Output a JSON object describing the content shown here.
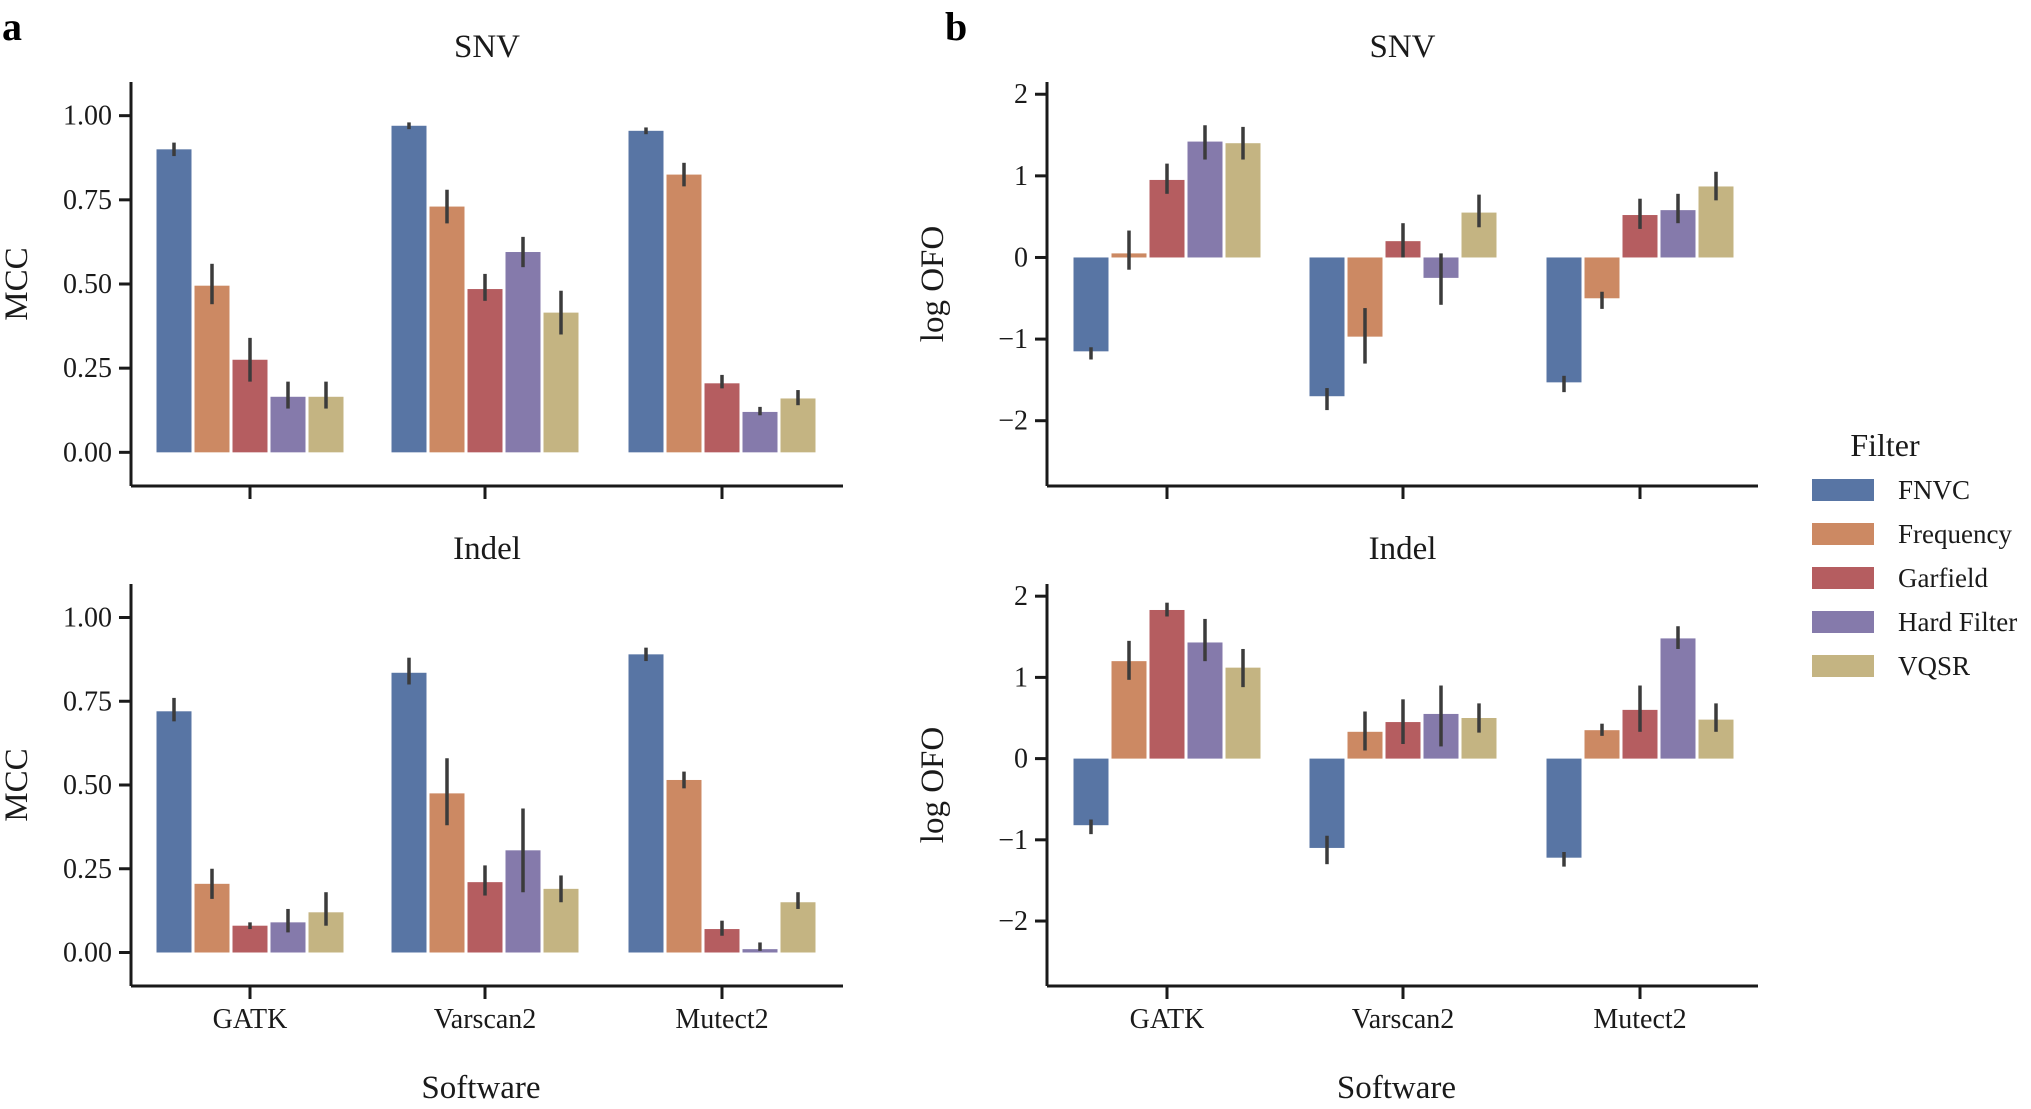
{
  "panels": {
    "a": "a",
    "b": "b"
  },
  "legend": {
    "title": "Filter",
    "items": [
      {
        "name": "FNVC",
        "color": "#5875a4"
      },
      {
        "name": "Frequency",
        "color": "#cc8963"
      },
      {
        "name": "Garfield",
        "color": "#b55d60"
      },
      {
        "name": "Hard Filter",
        "color": "#857aab"
      },
      {
        "name": "VQSR",
        "color": "#c4b482"
      }
    ]
  },
  "chart_data": [
    {
      "id": "a_snv",
      "panel": "a",
      "type": "bar",
      "title": "SNV",
      "xlabel": "",
      "ylabel": "MCC",
      "ylim": [
        -0.1,
        1.1
      ],
      "yticks": [
        "0.00",
        "0.25",
        "0.50",
        "0.75",
        "1.00"
      ],
      "categories": [
        "GATK",
        "Varscan2",
        "Mutect2"
      ],
      "show_xticklabels": false,
      "series": [
        {
          "name": "FNVC",
          "values": [
            0.9,
            0.97,
            0.955
          ],
          "err": [
            [
              0.88,
              0.92
            ],
            [
              0.96,
              0.98
            ],
            [
              0.945,
              0.965
            ]
          ]
        },
        {
          "name": "Frequency",
          "values": [
            0.495,
            0.73,
            0.825
          ],
          "err": [
            [
              0.44,
              0.56
            ],
            [
              0.68,
              0.78
            ],
            [
              0.79,
              0.86
            ]
          ]
        },
        {
          "name": "Garfield",
          "values": [
            0.275,
            0.485,
            0.205
          ],
          "err": [
            [
              0.21,
              0.34
            ],
            [
              0.45,
              0.53
            ],
            [
              0.19,
              0.23
            ]
          ]
        },
        {
          "name": "Hard Filter",
          "values": [
            0.165,
            0.595,
            0.12
          ],
          "err": [
            [
              0.13,
              0.21
            ],
            [
              0.55,
              0.64
            ],
            [
              0.11,
              0.135
            ]
          ]
        },
        {
          "name": "VQSR",
          "values": [
            0.165,
            0.415,
            0.16
          ],
          "err": [
            [
              0.13,
              0.21
            ],
            [
              0.35,
              0.48
            ],
            [
              0.14,
              0.185
            ]
          ]
        }
      ]
    },
    {
      "id": "a_indel",
      "panel": "a",
      "type": "bar",
      "title": "Indel",
      "xlabel": "Software",
      "ylabel": "MCC",
      "ylim": [
        -0.1,
        1.1
      ],
      "yticks": [
        "0.00",
        "0.25",
        "0.50",
        "0.75",
        "1.00"
      ],
      "categories": [
        "GATK",
        "Varscan2",
        "Mutect2"
      ],
      "show_xticklabels": true,
      "series": [
        {
          "name": "FNVC",
          "values": [
            0.72,
            0.835,
            0.89
          ],
          "err": [
            [
              0.69,
              0.76
            ],
            [
              0.8,
              0.88
            ],
            [
              0.87,
              0.91
            ]
          ]
        },
        {
          "name": "Frequency",
          "values": [
            0.205,
            0.475,
            0.515
          ],
          "err": [
            [
              0.16,
              0.25
            ],
            [
              0.38,
              0.58
            ],
            [
              0.49,
              0.54
            ]
          ]
        },
        {
          "name": "Garfield",
          "values": [
            0.08,
            0.21,
            0.07
          ],
          "err": [
            [
              0.07,
              0.09
            ],
            [
              0.17,
              0.26
            ],
            [
              0.05,
              0.095
            ]
          ]
        },
        {
          "name": "Hard Filter",
          "values": [
            0.09,
            0.305,
            0.01
          ],
          "err": [
            [
              0.06,
              0.13
            ],
            [
              0.18,
              0.43
            ],
            [
              0.005,
              0.03
            ]
          ]
        },
        {
          "name": "VQSR",
          "values": [
            0.12,
            0.19,
            0.15
          ],
          "err": [
            [
              0.08,
              0.18
            ],
            [
              0.15,
              0.23
            ],
            [
              0.13,
              0.18
            ]
          ]
        }
      ]
    },
    {
      "id": "b_snv",
      "panel": "b",
      "type": "bar",
      "title": "SNV",
      "xlabel": "",
      "ylabel": "log OFO",
      "ylim": [
        -2.8,
        2.15
      ],
      "yticks": [
        "−2",
        "−1",
        "0",
        "1",
        "2"
      ],
      "categories": [
        "GATK",
        "Varscan2",
        "Mutect2"
      ],
      "show_xticklabels": false,
      "series": [
        {
          "name": "FNVC",
          "values": [
            -1.15,
            -1.7,
            -1.53
          ],
          "err": [
            [
              -1.25,
              -1.1
            ],
            [
              -1.87,
              -1.6
            ],
            [
              -1.65,
              -1.45
            ]
          ]
        },
        {
          "name": "Frequency",
          "values": [
            0.05,
            -0.97,
            -0.5
          ],
          "err": [
            [
              -0.15,
              0.33
            ],
            [
              -1.3,
              -0.62
            ],
            [
              -0.63,
              -0.42
            ]
          ]
        },
        {
          "name": "Garfield",
          "values": [
            0.95,
            0.2,
            0.52
          ],
          "err": [
            [
              0.78,
              1.15
            ],
            [
              0.0,
              0.42
            ],
            [
              0.35,
              0.72
            ]
          ]
        },
        {
          "name": "Hard Filter",
          "values": [
            1.42,
            -0.25,
            0.58
          ],
          "err": [
            [
              1.2,
              1.62
            ],
            [
              -0.58,
              0.05
            ],
            [
              0.42,
              0.78
            ]
          ]
        },
        {
          "name": "VQSR",
          "values": [
            1.4,
            0.55,
            0.87
          ],
          "err": [
            [
              1.2,
              1.6
            ],
            [
              0.37,
              0.77
            ],
            [
              0.7,
              1.05
            ]
          ]
        }
      ]
    },
    {
      "id": "b_indel",
      "panel": "b",
      "type": "bar",
      "title": "Indel",
      "xlabel": "Software",
      "ylabel": "log OFO",
      "ylim": [
        -2.8,
        2.15
      ],
      "yticks": [
        "−2",
        "−1",
        "0",
        "1",
        "2"
      ],
      "categories": [
        "GATK",
        "Varscan2",
        "Mutect2"
      ],
      "show_xticklabels": true,
      "series": [
        {
          "name": "FNVC",
          "values": [
            -0.82,
            -1.1,
            -1.22
          ],
          "err": [
            [
              -0.93,
              -0.75
            ],
            [
              -1.3,
              -0.95
            ],
            [
              -1.33,
              -1.15
            ]
          ]
        },
        {
          "name": "Frequency",
          "values": [
            1.2,
            0.33,
            0.35
          ],
          "err": [
            [
              0.97,
              1.45
            ],
            [
              0.1,
              0.58
            ],
            [
              0.28,
              0.43
            ]
          ]
        },
        {
          "name": "Garfield",
          "values": [
            1.83,
            0.45,
            0.6
          ],
          "err": [
            [
              1.75,
              1.92
            ],
            [
              0.18,
              0.73
            ],
            [
              0.33,
              0.9
            ]
          ]
        },
        {
          "name": "Hard Filter",
          "values": [
            1.43,
            0.55,
            1.48
          ],
          "err": [
            [
              1.2,
              1.72
            ],
            [
              0.15,
              0.9
            ],
            [
              1.35,
              1.63
            ]
          ]
        },
        {
          "name": "VQSR",
          "values": [
            1.12,
            0.5,
            0.48
          ],
          "err": [
            [
              0.88,
              1.35
            ],
            [
              0.32,
              0.68
            ],
            [
              0.33,
              0.68
            ]
          ]
        }
      ]
    }
  ]
}
